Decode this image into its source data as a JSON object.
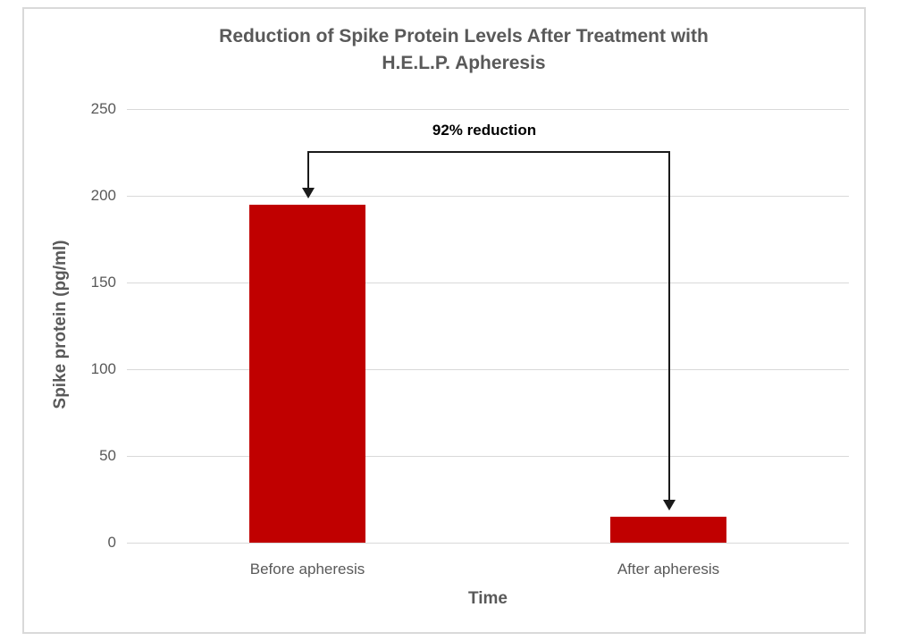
{
  "chart_data": {
    "type": "bar",
    "title": "Reduction of Spike Protein Levels After Treatment with\nH.E.L.P. Apheresis",
    "xlabel": "Time",
    "ylabel": "Spike protein (pg/ml)",
    "categories": [
      "Before apheresis",
      "After apheresis"
    ],
    "values": [
      195,
      15
    ],
    "ylim": [
      0,
      250
    ],
    "yticks": [
      0,
      50,
      100,
      150,
      200,
      250
    ],
    "grid": "horizontal-only",
    "legend_position": "none",
    "annotation": {
      "label": "92% reduction",
      "from_category": "Before apheresis",
      "to_category": "After apheresis"
    }
  },
  "colors": {
    "bar": "#c00000",
    "title_text": "#595959",
    "axis_text": "#595959",
    "gridline": "#d9d9d9",
    "annotation": "#1a1a1a",
    "frame_border": "#d9d9d9",
    "background": "#ffffff"
  }
}
